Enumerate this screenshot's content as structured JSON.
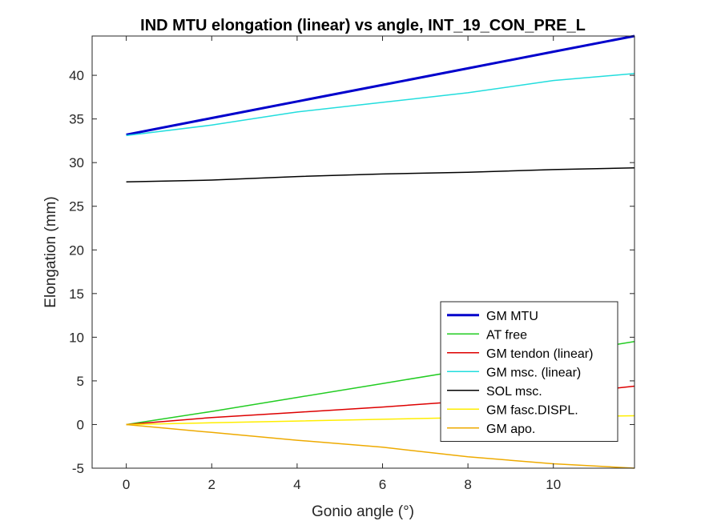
{
  "chart_data": {
    "type": "line",
    "title": "IND MTU elongation (linear) vs angle, INT_19_CON_PRE_L",
    "xlabel": "Gonio angle (°)",
    "ylabel": "Elongation (mm)",
    "xlim": [
      -0.8,
      11.9
    ],
    "ylim": [
      -5,
      44.5
    ],
    "xticks": [
      0,
      2,
      4,
      6,
      8,
      10
    ],
    "yticks": [
      -5,
      0,
      5,
      10,
      15,
      20,
      25,
      30,
      35,
      40
    ],
    "grid": false,
    "legend_position": "bottom-right",
    "series": [
      {
        "name": "GM MTU",
        "color": "#0000cc",
        "width": 3,
        "x": [
          0,
          2,
          4,
          6,
          8,
          10,
          11.9
        ],
        "y": [
          33.2,
          35.1,
          37.0,
          38.9,
          40.8,
          42.7,
          44.5
        ]
      },
      {
        "name": "AT free",
        "color": "#22cc22",
        "width": 1.5,
        "x": [
          0,
          2,
          4,
          6,
          8,
          10,
          11.9
        ],
        "y": [
          0,
          1.5,
          3.1,
          4.7,
          6.3,
          8.0,
          9.5
        ]
      },
      {
        "name": "GM tendon (linear)",
        "color": "#dd0000",
        "width": 1.5,
        "x": [
          0,
          2,
          4,
          6,
          8,
          10,
          11.9
        ],
        "y": [
          0,
          0.8,
          1.4,
          2.0,
          2.7,
          3.4,
          4.4
        ]
      },
      {
        "name": "GM msc. (linear)",
        "color": "#22dddd",
        "width": 1.5,
        "x": [
          0,
          2,
          4,
          6,
          8,
          10,
          11.9
        ],
        "y": [
          33.1,
          34.3,
          35.8,
          36.9,
          38.0,
          39.4,
          40.2
        ]
      },
      {
        "name": "SOL msc.",
        "color": "#000000",
        "width": 1.5,
        "x": [
          0,
          2,
          4,
          6,
          8,
          10,
          11.9
        ],
        "y": [
          27.8,
          28.0,
          28.4,
          28.7,
          28.9,
          29.2,
          29.4
        ]
      },
      {
        "name": "GM fasc.DISPL.",
        "color": "#ffee00",
        "width": 1.5,
        "x": [
          0,
          2,
          4,
          6,
          8,
          10,
          11.9
        ],
        "y": [
          0,
          0.2,
          0.4,
          0.6,
          0.8,
          0.9,
          1.0
        ]
      },
      {
        "name": "GM apo.",
        "color": "#eeaa00",
        "width": 1.5,
        "x": [
          0,
          2,
          4,
          6,
          8,
          10,
          11.9
        ],
        "y": [
          0,
          -0.9,
          -1.8,
          -2.6,
          -3.7,
          -4.5,
          -5.0
        ]
      }
    ]
  }
}
